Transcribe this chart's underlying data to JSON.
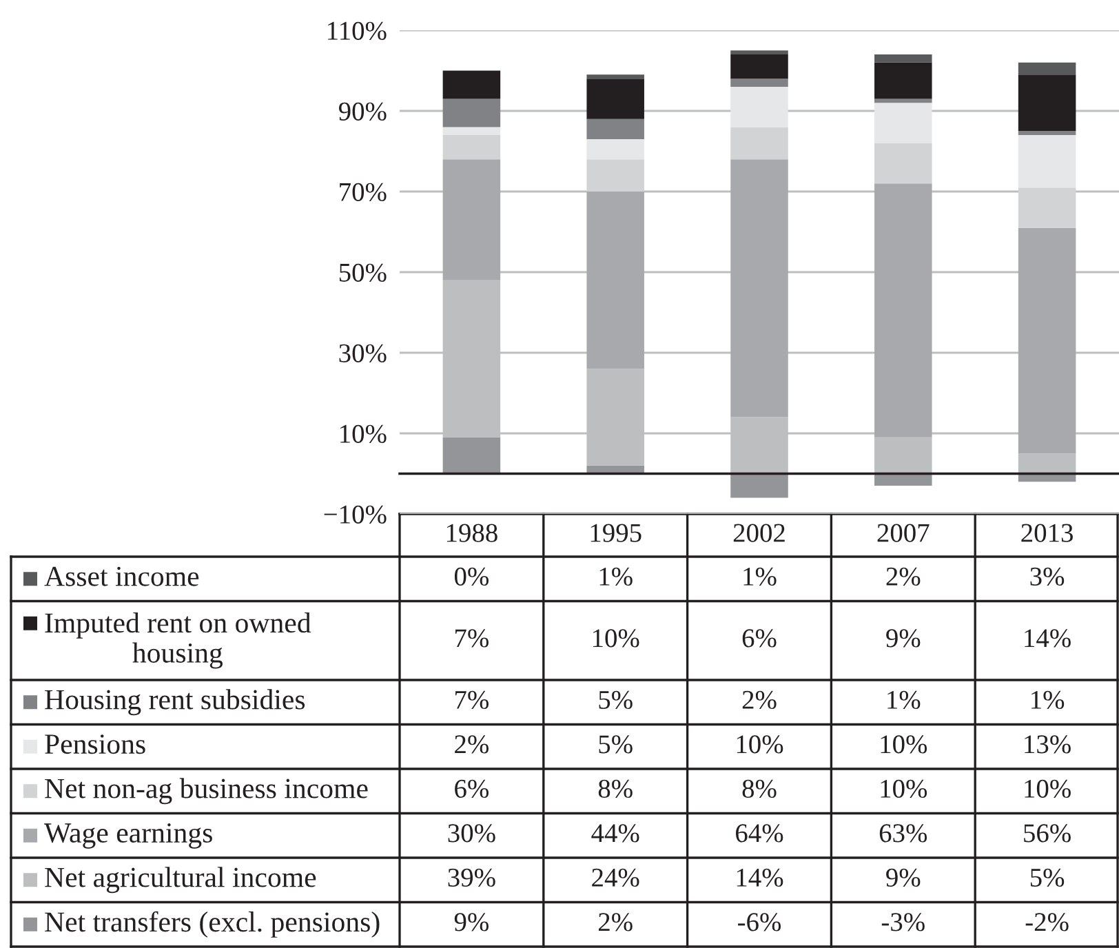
{
  "chart_data": {
    "type": "bar",
    "stacked": true,
    "categories": [
      "1988",
      "1995",
      "2002",
      "2007",
      "2013"
    ],
    "series": [
      {
        "name": "Net transfers (excl. pensions)",
        "color": "#939598",
        "values": [
          9,
          2,
          -6,
          -3,
          -2
        ],
        "value_labels": [
          "9%",
          "2%",
          "-6%",
          "-3%",
          "-2%"
        ]
      },
      {
        "name": "Net agricultural income",
        "color": "#bcbec0",
        "values": [
          39,
          24,
          14,
          9,
          5
        ],
        "value_labels": [
          "39%",
          "24%",
          "14%",
          "9%",
          "5%"
        ]
      },
      {
        "name": "Wage earnings",
        "color": "#a7a9ac",
        "values": [
          30,
          44,
          64,
          63,
          56
        ],
        "value_labels": [
          "30%",
          "44%",
          "64%",
          "63%",
          "56%"
        ]
      },
      {
        "name": "Net non-ag business income",
        "color": "#d1d3d4",
        "values": [
          6,
          8,
          8,
          10,
          10
        ],
        "value_labels": [
          "6%",
          "8%",
          "8%",
          "10%",
          "10%"
        ]
      },
      {
        "name": "Pensions",
        "color": "#e6e7e8",
        "values": [
          2,
          5,
          10,
          10,
          13
        ],
        "value_labels": [
          "2%",
          "5%",
          "10%",
          "10%",
          "13%"
        ]
      },
      {
        "name": "Housing rent subsidies",
        "color": "#808285",
        "values": [
          7,
          5,
          2,
          1,
          1
        ],
        "value_labels": [
          "7%",
          "5%",
          "2%",
          "1%",
          "1%"
        ]
      },
      {
        "name": "Imputed rent on owned housing",
        "color": "#231f20",
        "values": [
          7,
          10,
          6,
          9,
          14
        ],
        "value_labels": [
          "7%",
          "10%",
          "6%",
          "9%",
          "14%"
        ]
      },
      {
        "name": "Asset income",
        "color": "#58595b",
        "values": [
          0,
          1,
          1,
          2,
          3
        ],
        "value_labels": [
          "0%",
          "1%",
          "1%",
          "2%",
          "3%"
        ]
      }
    ],
    "ylim": [
      -10,
      110
    ],
    "yticks": [
      {
        "value": -10,
        "label": "−10%"
      },
      {
        "value": 10,
        "label": "10%"
      },
      {
        "value": 30,
        "label": "30%"
      },
      {
        "value": 50,
        "label": "50%"
      },
      {
        "value": 70,
        "label": "70%"
      },
      {
        "value": 90,
        "label": "90%"
      },
      {
        "value": 110,
        "label": "110%"
      }
    ],
    "grid": "y",
    "legend": "bottom left"
  }
}
